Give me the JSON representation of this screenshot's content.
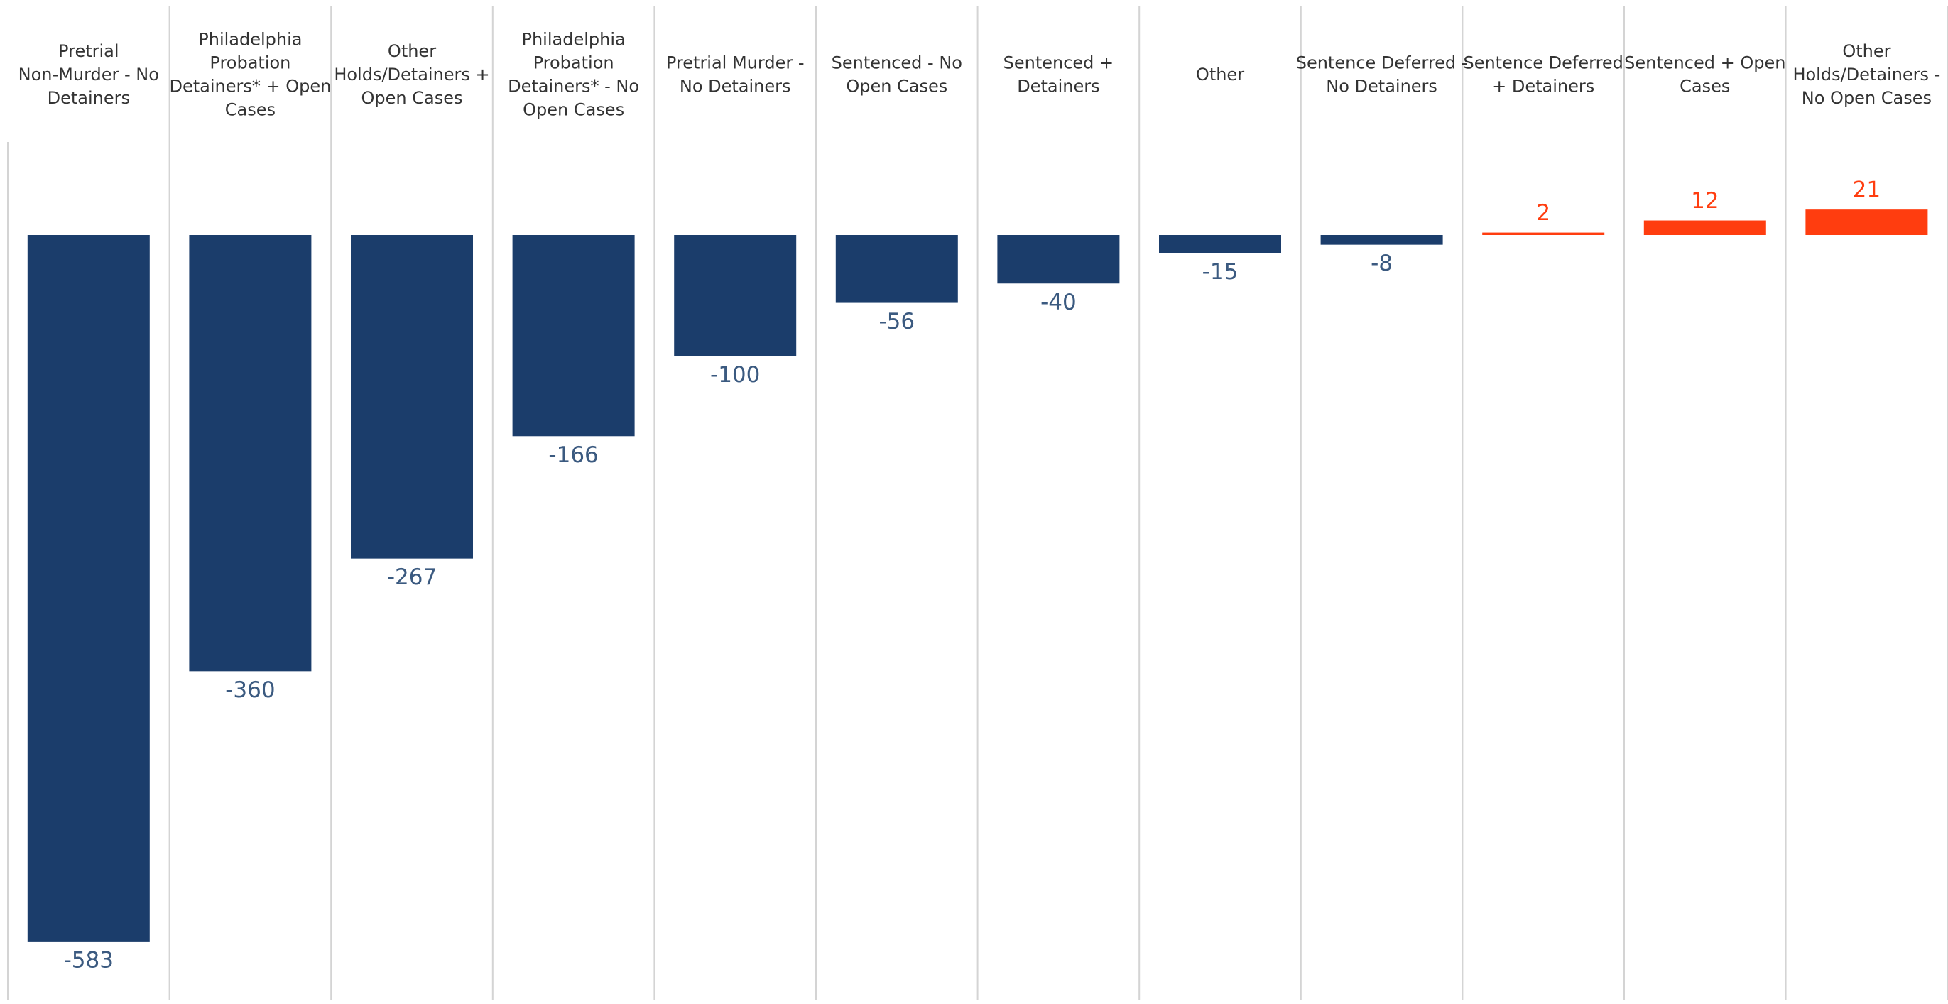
{
  "chart_data": {
    "type": "bar",
    "categories": [
      [
        "Pretrial",
        "Non-Murder - No",
        "Detainers"
      ],
      [
        "Philadelphia",
        "Probation",
        "Detainers* + Open",
        "Cases"
      ],
      [
        "Other",
        "Holds/Detainers +",
        "Open Cases"
      ],
      [
        "Philadelphia",
        "Probation",
        "Detainers* - No",
        "Open Cases"
      ],
      [
        "Pretrial Murder -",
        "No Detainers"
      ],
      [
        "Sentenced - No",
        "Open Cases"
      ],
      [
        "Sentenced +",
        "Detainers"
      ],
      [
        "Other"
      ],
      [
        "Sentence Deferred -",
        "No Detainers"
      ],
      [
        "Sentence Deferred",
        "+ Detainers"
      ],
      [
        "Sentenced + Open",
        "Cases"
      ],
      [
        "Other",
        "Holds/Detainers -",
        "No Open Cases"
      ]
    ],
    "values": [
      -583,
      -360,
      -267,
      -166,
      -100,
      -56,
      -40,
      -15,
      -8,
      2,
      12,
      21
    ],
    "value_labels": [
      "-583",
      "-360",
      "-267",
      "-166",
      "-100",
      "-56",
      "-40",
      "-15",
      "-8",
      "2",
      "12",
      "21"
    ],
    "title": "",
    "xlabel": "",
    "ylabel": "",
    "ylim": [
      -600,
      40
    ],
    "grid": false,
    "legend": "none",
    "colors": {
      "negative": "#1b3d6b",
      "positive": "#ff3d0f",
      "negative_label": "#3b5a80",
      "positive_label": "#ff3d0f",
      "divider": "#d4d4d4"
    }
  }
}
